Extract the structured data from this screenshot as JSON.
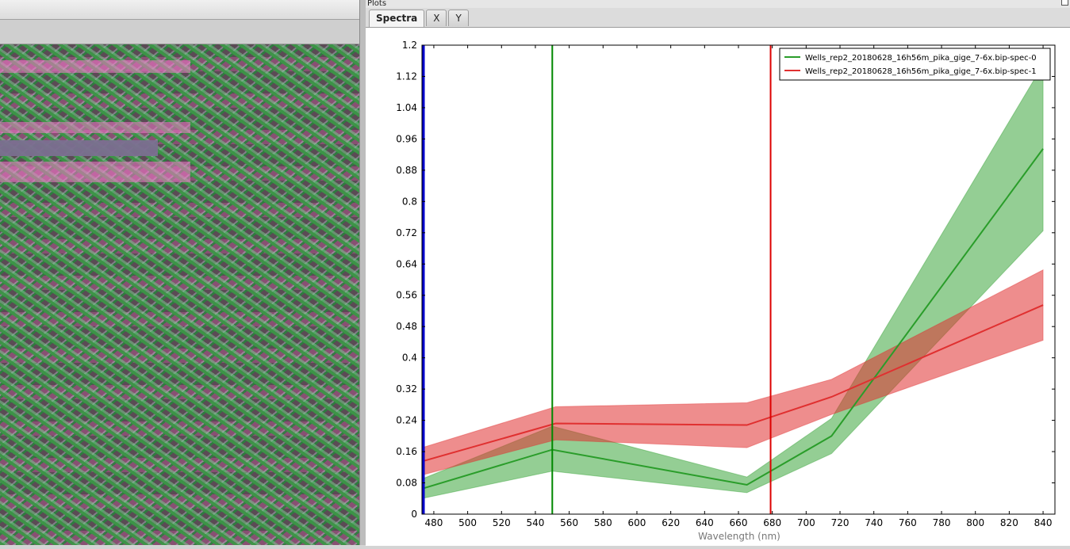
{
  "plots_panel": {
    "title": "Plots",
    "tabs": [
      {
        "label": "Spectra",
        "active": true
      },
      {
        "label": "X",
        "active": false
      },
      {
        "label": "Y",
        "active": false
      }
    ]
  },
  "chart_data": {
    "type": "line",
    "xlabel": "Wavelength (nm)",
    "ylabel": "",
    "xlim": [
      473,
      847
    ],
    "ylim": [
      0,
      1.2
    ],
    "xticks": [
      480,
      500,
      520,
      540,
      560,
      580,
      600,
      620,
      640,
      660,
      680,
      700,
      720,
      740,
      760,
      780,
      800,
      820,
      840
    ],
    "yticks": [
      0,
      0.08,
      0.16,
      0.24,
      0.32,
      0.4,
      0.48,
      0.56,
      0.64,
      0.72,
      0.8,
      0.88,
      0.96,
      1.04,
      1.12,
      1.2
    ],
    "ytick_labels": [
      "0",
      "0.08",
      "0.16",
      "0.24",
      "0.32",
      "0.4",
      "0.48",
      "0.56",
      "0.64",
      "0.72",
      "0.8",
      "0.88",
      "0.96",
      "1.04",
      "1.12",
      "1.2"
    ],
    "legend_position": "top-right",
    "grid": false,
    "series": [
      {
        "name": "Wells_rep2_20180628_16h56m_pika_gige_7-6x.bip-spec-0",
        "color": "#2a9d2a",
        "x": [
          473,
          550,
          665,
          715,
          840
        ],
        "mean": [
          0.065,
          0.165,
          0.075,
          0.2,
          0.935
        ],
        "upper": [
          0.09,
          0.225,
          0.095,
          0.245,
          1.15
        ],
        "lower": [
          0.04,
          0.11,
          0.055,
          0.155,
          0.725
        ]
      },
      {
        "name": "Wells_rep2_20180628_16h56m_pika_gige_7-6x.bip-spec-1",
        "color": "#e03030",
        "x": [
          473,
          552,
          665,
          715,
          840
        ],
        "mean": [
          0.135,
          0.232,
          0.228,
          0.3,
          0.535
        ],
        "upper": [
          0.17,
          0.275,
          0.285,
          0.345,
          0.625
        ],
        "lower": [
          0.1,
          0.19,
          0.17,
          0.255,
          0.445
        ]
      }
    ],
    "vertical_lines": [
      {
        "x": 473,
        "color": "#0000cc"
      },
      {
        "x": 550,
        "color": "#008800"
      },
      {
        "x": 679,
        "color": "#dd0000"
      }
    ]
  }
}
